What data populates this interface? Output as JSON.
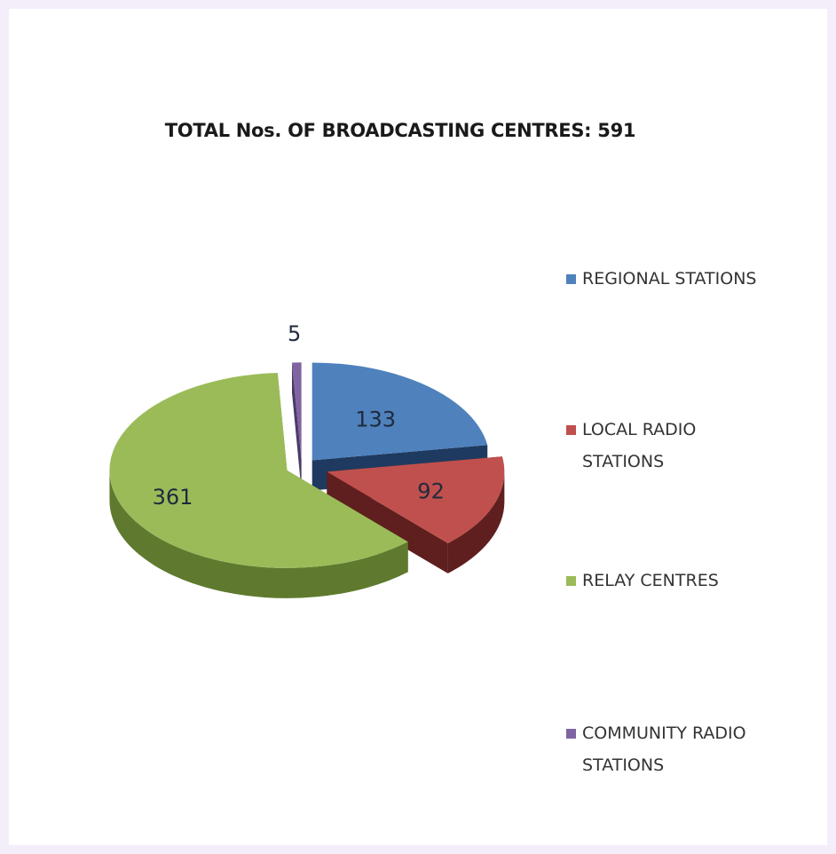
{
  "chart_data": {
    "type": "pie",
    "title": "TOTAL Nos. OF BROADCASTING CENTRES: 591",
    "categories": [
      "REGIONAL STATIONS",
      "LOCAL RADIO STATIONS",
      "RELAY CENTRES",
      "COMMUNITY RADIO STATIONS"
    ],
    "values": [
      133,
      92,
      361,
      5
    ],
    "colors": [
      "#4f81bd",
      "#c0504d",
      "#9bbb59",
      "#8064a2"
    ],
    "side_colors": [
      "#1f3a60",
      "#5e1f1e",
      "#5f7a2e",
      "#4a3a66"
    ],
    "legend_position": "right",
    "exploded": true,
    "three_d": true
  },
  "legend": [
    {
      "label": "REGIONAL STATIONS"
    },
    {
      "label": "LOCAL RADIO\nSTATIONS"
    },
    {
      "label": "RELAY CENTRES"
    },
    {
      "label": "COMMUNITY RADIO\nSTATIONS"
    }
  ]
}
